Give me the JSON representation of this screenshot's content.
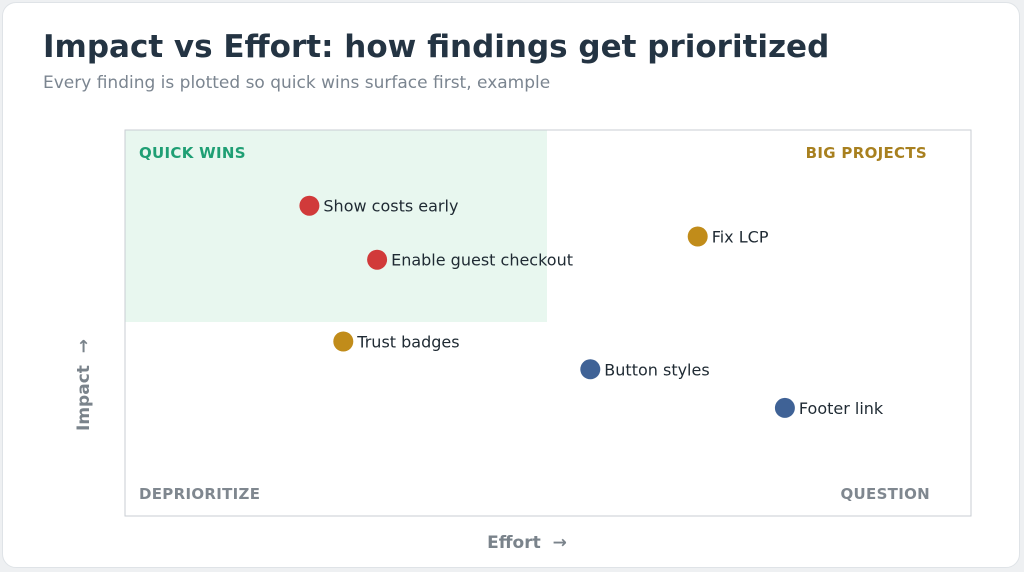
{
  "header": {
    "title": "Impact vs Effort: how findings get prioritized",
    "subtitle": "Every finding is plotted so quick wins surface first, example"
  },
  "colors": {
    "quick_wins": "#1f9f74",
    "big_projects": "#a8801f",
    "muted": "#7f878f",
    "quick_wins_bg": "#e8f7ef",
    "red": "#d13a3a",
    "gold": "#c18c1a",
    "blue": "#3f6296"
  },
  "chart_data": {
    "type": "scatter",
    "title": "Impact vs Effort: how findings get prioritized",
    "subtitle": "Every finding is plotted so quick wins surface first, example",
    "xlabel": "Effort  →",
    "ylabel": "Impact  →",
    "xlim": [
      0,
      100
    ],
    "ylim": [
      0,
      100
    ],
    "grid": false,
    "quadrants": [
      {
        "key": "quick_wins",
        "label": "QUICK WINS",
        "color": "#1f9f74",
        "highlighted": true
      },
      {
        "key": "big_projects",
        "label": "BIG PROJECTS",
        "color": "#a8801f"
      },
      {
        "key": "deprioritize",
        "label": "DEPRIORITIZE",
        "color": "#7f878f"
      },
      {
        "key": "question",
        "label": "QUESTION",
        "color": "#7f878f"
      }
    ],
    "points": [
      {
        "label": "Show costs early",
        "x": 21.8,
        "y": 80.4,
        "color": "#d13a3a"
      },
      {
        "label": "Enable guest checkout",
        "x": 29.8,
        "y": 66.4,
        "color": "#d13a3a"
      },
      {
        "label": "Fix LCP",
        "x": 67.7,
        "y": 72.4,
        "color": "#c18c1a"
      },
      {
        "label": "Trust badges",
        "x": 25.8,
        "y": 45.2,
        "color": "#c18c1a"
      },
      {
        "label": "Button styles",
        "x": 55.0,
        "y": 38.0,
        "color": "#3f6296"
      },
      {
        "label": "Footer link",
        "x": 78.0,
        "y": 28.0,
        "color": "#3f6296"
      }
    ]
  }
}
